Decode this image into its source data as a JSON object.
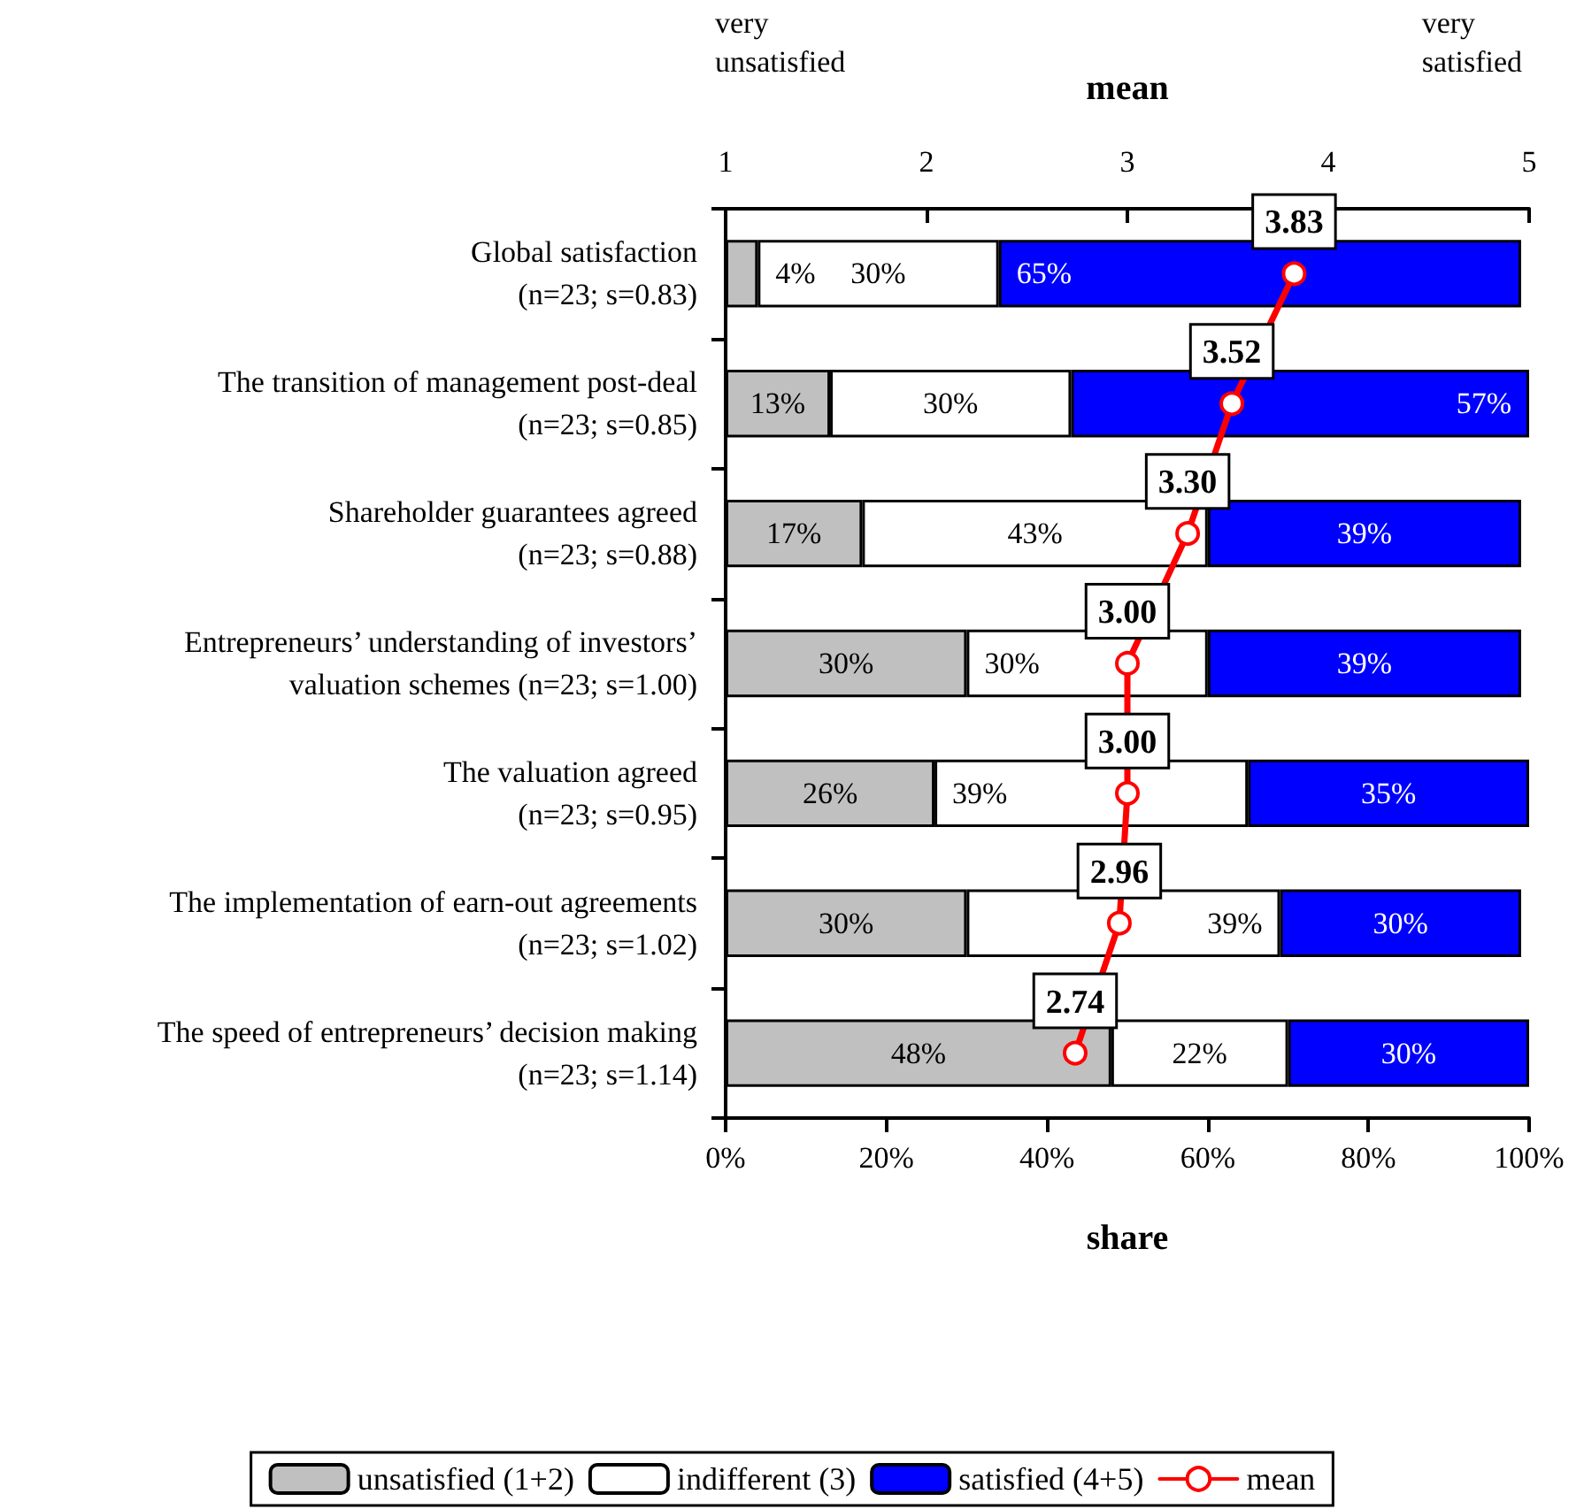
{
  "chart_data": {
    "type": "bar",
    "orientation": "horizontal",
    "stacked": true,
    "categories": [
      "Global satisfaction\n(n=23; s=0.83)",
      "The transition of management post-deal\n(n=23; s=0.85)",
      "Shareholder guarantees agreed\n(n=23; s=0.88)",
      "Entrepreneurs’ understanding of investors’\nvaluation schemes (n=23; s=1.00)",
      "The valuation agreed\n(n=23; s=0.95)",
      "The implementation of earn-out agreements\n(n=23; s=1.02)",
      "The speed of entrepreneurs’ decision making\n(n=23; s=1.14)"
    ],
    "series": [
      {
        "name": "unsatisfied (1+2)",
        "color": "#c0c0c0",
        "values": [
          4,
          13,
          17,
          30,
          26,
          30,
          48
        ],
        "value_labels": [
          "4%",
          "13%",
          "17%",
          "30%",
          "26%",
          "30%",
          "48%"
        ]
      },
      {
        "name": "indifferent (3)",
        "color": "#ffffff",
        "values": [
          30,
          30,
          43,
          30,
          39,
          39,
          22
        ],
        "value_labels": [
          "30%",
          "30%",
          "43%",
          "30%",
          "39%",
          "39%",
          "22%"
        ]
      },
      {
        "name": "satisfied (4+5)",
        "color": "#0000ff",
        "values": [
          65,
          57,
          39,
          39,
          35,
          30,
          30
        ],
        "value_labels": [
          "65%",
          "57%",
          "39%",
          "39%",
          "35%",
          "30%",
          "30%"
        ]
      },
      {
        "name": "mean",
        "type": "line",
        "axis": "x2",
        "color": "#ff0000",
        "marker": "circle",
        "values": [
          3.83,
          3.52,
          3.3,
          3.0,
          3.0,
          2.96,
          2.74
        ],
        "value_labels": [
          "3.83",
          "3.52",
          "3.30",
          "3.00",
          "3.00",
          "2.96",
          "2.74"
        ]
      }
    ],
    "xlabel": "share",
    "x2label": "mean",
    "xlim": [
      0,
      100
    ],
    "xticks": [
      {
        "value": 0,
        "label": "0%"
      },
      {
        "value": 20,
        "label": "20%"
      },
      {
        "value": 40,
        "label": "40%"
      },
      {
        "value": 60,
        "label": "60%"
      },
      {
        "value": 80,
        "label": "80%"
      },
      {
        "value": 100,
        "label": "100%"
      }
    ],
    "x2lim": [
      1,
      5
    ],
    "x2ticks": [
      1,
      2,
      3,
      4,
      5
    ],
    "annotations": [
      "very\nunsatisfied",
      "very\nsatisfied"
    ],
    "legend": "bottom",
    "grid": false
  }
}
